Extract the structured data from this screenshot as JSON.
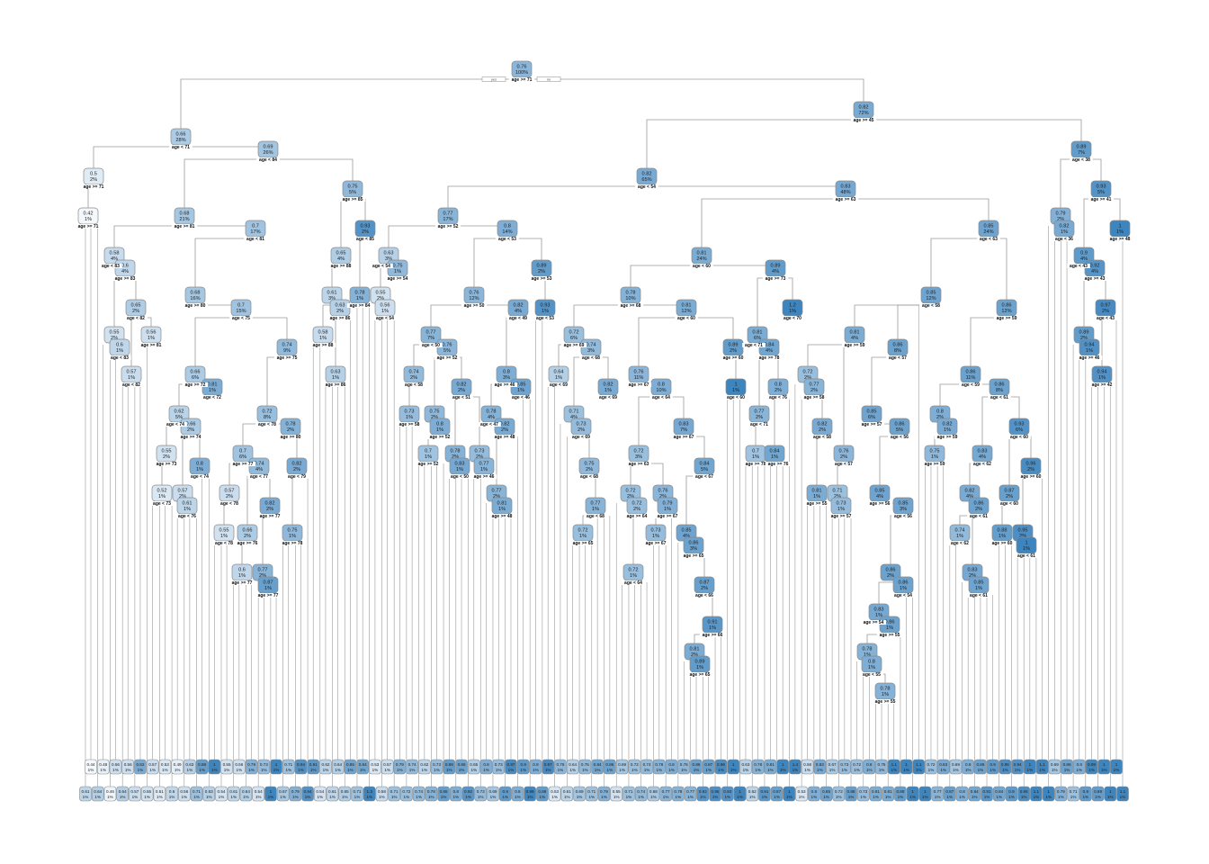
{
  "root_labels": {
    "yes": "yes",
    "no": "no"
  },
  "colors": {
    "low": "#f4f8fc",
    "high": "#3d85bf",
    "edge": "#9a9a9a",
    "box_stroke": "#8a8a8a"
  },
  "nodes": [
    {
      "v": "0.76",
      "p": "100%",
      "s": "age >= 71",
      "parent": null
    },
    {
      "v": "0.66",
      "p": "28%",
      "s": "age < 71",
      "parent": 0
    },
    {
      "v": "0.82",
      "p": "72%",
      "s": "age >= 45",
      "parent": 0
    },
    {
      "v": "0.5",
      "p": "2%",
      "s": "age >= 71",
      "parent": 1
    },
    {
      "v": "0.42",
      "p": "1%",
      "s": "age >= 71",
      "parent": 3
    },
    {
      "v": "0.69",
      "p": "26%",
      "s": "age < 84",
      "parent": 1
    },
    {
      "v": "0.68",
      "p": "21%",
      "s": "age >= 81",
      "parent": 5
    },
    {
      "v": "0.7",
      "p": "17%",
      "s": "age < 81",
      "parent": 6
    },
    {
      "v": "0.75",
      "p": "5%",
      "s": "age >= 85",
      "parent": 5
    },
    {
      "v": "0.93",
      "p": "2%",
      "s": "age < 85",
      "parent": 8
    },
    {
      "v": "0.58",
      "p": "4%",
      "s": "age < 83",
      "parent": 6
    },
    {
      "v": "0.6",
      "p": "4%",
      "s": "age >= 83",
      "parent": 10
    },
    {
      "v": "0.65",
      "p": "2%",
      "s": "age < 82",
      "parent": 11
    },
    {
      "v": "0.55",
      "p": "2%",
      "s": "",
      "parent": 11
    },
    {
      "v": "0.6",
      "p": "1%",
      "s": "age < 83",
      "parent": 13
    },
    {
      "v": "0.57",
      "p": "1%",
      "s": "age < 82",
      "parent": 12
    },
    {
      "v": "0.56",
      "p": "1%",
      "s": "age >= 81",
      "parent": 12
    },
    {
      "v": "0.68",
      "p": "16%",
      "s": "age >= 80",
      "parent": 7
    },
    {
      "v": "0.7",
      "p": "15%",
      "s": "age < 75",
      "parent": 17
    },
    {
      "v": "0.66",
      "p": "6%",
      "s": "age >= 72",
      "parent": 18
    },
    {
      "v": "0.81",
      "p": "1%",
      "s": "age < 72",
      "parent": 19
    },
    {
      "v": "0.62",
      "p": "5%",
      "s": "age < 74",
      "parent": 19
    },
    {
      "v": "0.66",
      "p": "2%",
      "s": "age >= 74",
      "parent": 21
    },
    {
      "v": "0.55",
      "p": "2%",
      "s": "age >= 73",
      "parent": 21
    },
    {
      "v": "0.8",
      "p": "1%",
      "s": "age < 74",
      "parent": 22
    },
    {
      "v": "0.52",
      "p": "1%",
      "s": "age < 73",
      "parent": 23
    },
    {
      "v": "0.57",
      "p": "2%",
      "s": "",
      "parent": 22
    },
    {
      "v": "0.61",
      "p": "1%",
      "s": "age < 76",
      "parent": 26
    },
    {
      "v": "0.74",
      "p": "9%",
      "s": "age >= 75",
      "parent": 18
    },
    {
      "v": "0.72",
      "p": "8%",
      "s": "age < 78",
      "parent": 28
    },
    {
      "v": "0.78",
      "p": "2%",
      "s": "age >= 80",
      "parent": 29
    },
    {
      "v": "0.7",
      "p": "6%",
      "s": "age >= 77",
      "parent": 29
    },
    {
      "v": "0.74",
      "p": "4%",
      "s": "age < 77",
      "parent": 31
    },
    {
      "v": "0.82",
      "p": "2%",
      "s": "age < 79",
      "parent": 30
    },
    {
      "v": "0.57",
      "p": "2%",
      "s": "age < 78",
      "parent": 31
    },
    {
      "v": "0.55",
      "p": "1%",
      "s": "age < 78",
      "parent": 34
    },
    {
      "v": "0.66",
      "p": "2%",
      "s": "age >= 76",
      "parent": 32
    },
    {
      "v": "0.82",
      "p": "2%",
      "s": "age >= 77",
      "parent": 32
    },
    {
      "v": "0.75",
      "p": "1%",
      "s": "age >= 78",
      "parent": 33
    },
    {
      "v": "0.6",
      "p": "1%",
      "s": "age >= 77",
      "parent": 36
    },
    {
      "v": "0.77",
      "p": "2%",
      "s": "",
      "parent": 37
    },
    {
      "v": "0.87",
      "p": "1%",
      "s": "age >= 77",
      "parent": 40
    },
    {
      "v": "0.65",
      "p": "4%",
      "s": "age >= 88",
      "parent": 8
    },
    {
      "v": "0.61",
      "p": "3%",
      "s": "",
      "parent": 42
    },
    {
      "v": "0.63",
      "p": "2%",
      "s": "age >= 86",
      "parent": 43
    },
    {
      "v": "0.58",
      "p": "1%",
      "s": "age >= 88",
      "parent": 43
    },
    {
      "v": "0.63",
      "p": "1%",
      "s": "age >= 86",
      "parent": 44
    },
    {
      "v": "0.78",
      "p": "1%",
      "s": "age >= 84",
      "parent": 9
    },
    {
      "v": "0.82",
      "p": "65%",
      "s": "age < 54",
      "parent": 2
    },
    {
      "v": "0.77",
      "p": "17%",
      "s": "age >= 52",
      "parent": 48
    },
    {
      "v": "0.83",
      "p": "48%",
      "s": "age >= 63",
      "parent": 48
    },
    {
      "v": "0.63",
      "p": "3%",
      "s": "age < 54",
      "parent": 49
    },
    {
      "v": "0.75",
      "p": "1%",
      "s": "age >= 54",
      "parent": 51
    },
    {
      "v": "0.55",
      "p": "2%",
      "s": "",
      "parent": 51
    },
    {
      "v": "0.56",
      "p": "1%",
      "s": "age < 54",
      "parent": 53
    },
    {
      "v": "0.8",
      "p": "14%",
      "s": "age < 53",
      "parent": 49
    },
    {
      "v": "0.76",
      "p": "12%",
      "s": "age >= 50",
      "parent": 55
    },
    {
      "v": "0.89",
      "p": "2%",
      "s": "age >= 53",
      "parent": 55
    },
    {
      "v": "0.93",
      "p": "1%",
      "s": "age < 53",
      "parent": 57
    },
    {
      "v": "0.77",
      "p": "7%",
      "s": "age < 50",
      "parent": 56
    },
    {
      "v": "0.76",
      "p": "5%",
      "s": "age >= 52",
      "parent": 59
    },
    {
      "v": "0.74",
      "p": "2%",
      "s": "age < 58",
      "parent": 59
    },
    {
      "v": "0.73",
      "p": "1%",
      "s": "age >= 58",
      "parent": 61
    },
    {
      "v": "0.75",
      "p": "2%",
      "s": "",
      "parent": 60
    },
    {
      "v": "0.8",
      "p": "1%",
      "s": "age >= 52",
      "parent": 63
    },
    {
      "v": "0.7",
      "p": "1%",
      "s": "age >= 52",
      "parent": 64
    },
    {
      "v": "0.82",
      "p": "2%",
      "s": "age < 51",
      "parent": 60
    },
    {
      "v": "0.78",
      "p": "2%",
      "s": "",
      "parent": 66
    },
    {
      "v": "0.83",
      "p": "1%",
      "s": "age < 50",
      "parent": 67
    },
    {
      "v": "0.73",
      "p": "2%",
      "s": "",
      "parent": 66
    },
    {
      "v": "0.77",
      "p": "1%",
      "s": "age >= 46",
      "parent": 69
    },
    {
      "v": "0.82",
      "p": "4%",
      "s": "age < 49",
      "parent": 56
    },
    {
      "v": "0.8",
      "p": "3%",
      "s": "age >= 46",
      "parent": 71
    },
    {
      "v": "0.85",
      "p": "1%",
      "s": "age < 46",
      "parent": 72
    },
    {
      "v": "0.78",
      "p": "4%",
      "s": "age < 47",
      "parent": 72
    },
    {
      "v": "0.82",
      "p": "2%",
      "s": "age >= 48",
      "parent": 74
    },
    {
      "v": "0.77",
      "p": "2%",
      "s": "",
      "parent": 75
    },
    {
      "v": "0.81",
      "p": "1%",
      "s": "age >= 48",
      "parent": 76
    },
    {
      "v": "0.81",
      "p": "24%",
      "s": "age < 60",
      "parent": 50
    },
    {
      "v": "0.89",
      "p": "4%",
      "s": "age >= 73",
      "parent": 78
    },
    {
      "v": "0.78",
      "p": "10%",
      "s": "age >= 68",
      "parent": 78
    },
    {
      "v": "0.81",
      "p": "12%",
      "s": "age < 60",
      "parent": 80
    },
    {
      "v": "0.72",
      "p": "6%",
      "s": "age >= 69",
      "parent": 80
    },
    {
      "v": "0.74",
      "p": "3%",
      "s": "age < 68",
      "parent": 82
    },
    {
      "v": "0.64",
      "p": "1%",
      "s": "age < 69",
      "parent": 82
    },
    {
      "v": "0.71",
      "p": "4%",
      "s": "",
      "parent": 83
    },
    {
      "v": "0.73",
      "p": "2%",
      "s": "age < 69",
      "parent": 85
    },
    {
      "v": "0.75",
      "p": "2%",
      "s": "age < 68",
      "parent": 86
    },
    {
      "v": "0.77",
      "p": "1%",
      "s": "age < 68",
      "parent": 87
    },
    {
      "v": "0.72",
      "p": "1%",
      "s": "age >= 65",
      "parent": 88
    },
    {
      "v": "0.82",
      "p": "1%",
      "s": "age < 69",
      "parent": 83
    },
    {
      "v": "0.76",
      "p": "11%",
      "s": "age >= 67",
      "parent": 81
    },
    {
      "v": "0.8",
      "p": "10%",
      "s": "age < 64",
      "parent": 91
    },
    {
      "v": "0.72",
      "p": "3%",
      "s": "age >= 63",
      "parent": 92
    },
    {
      "v": "0.72",
      "p": "2%",
      "s": "",
      "parent": 93
    },
    {
      "v": "0.72",
      "p": "2%",
      "s": "age >= 64",
      "parent": 94
    },
    {
      "v": "0.72",
      "p": "1%",
      "s": "age < 64",
      "parent": 95
    },
    {
      "v": "0.76",
      "p": "2%",
      "s": "",
      "parent": 93
    },
    {
      "v": "0.79",
      "p": "1%",
      "s": "age >= 67",
      "parent": 97
    },
    {
      "v": "0.73",
      "p": "1%",
      "s": "age >= 67",
      "parent": 98
    },
    {
      "v": "0.83",
      "p": "7%",
      "s": "age >= 67",
      "parent": 92
    },
    {
      "v": "0.84",
      "p": "5%",
      "s": "age < 67",
      "parent": 100
    },
    {
      "v": "0.85",
      "p": "4%",
      "s": "",
      "parent": 101
    },
    {
      "v": "0.86",
      "p": "3%",
      "s": "age >= 65",
      "parent": 102
    },
    {
      "v": "0.87",
      "p": "2%",
      "s": "age < 66",
      "parent": 103
    },
    {
      "v": "0.91",
      "p": "1%",
      "s": "age >= 66",
      "parent": 104
    },
    {
      "v": "0.81",
      "p": "2%",
      "s": "",
      "parent": 105
    },
    {
      "v": "0.89",
      "p": "1%",
      "s": "age >= 65",
      "parent": 106
    },
    {
      "v": "0.89",
      "p": "2%",
      "s": "age >= 60",
      "parent": 81
    },
    {
      "v": "1",
      "p": "1%",
      "s": "age < 60",
      "parent": 108
    },
    {
      "v": "0.81",
      "p": "6%",
      "s": "age < 71",
      "parent": 79
    },
    {
      "v": "0.84",
      "p": "4%",
      "s": "age >= 78",
      "parent": 110
    },
    {
      "v": "0.77",
      "p": "2%",
      "s": "age < 71",
      "parent": 111
    },
    {
      "v": "0.8",
      "p": "2%",
      "s": "age < 76",
      "parent": 111
    },
    {
      "v": "0.7",
      "p": "1%",
      "s": "age >= 78",
      "parent": 112
    },
    {
      "v": "0.84",
      "p": "1%",
      "s": "age >= 76",
      "parent": 113
    },
    {
      "v": "1.2",
      "p": "1%",
      "s": "age < 70",
      "parent": 79
    },
    {
      "v": "0.85",
      "p": "24%",
      "s": "age < 63",
      "parent": 50
    },
    {
      "v": "0.85",
      "p": "12%",
      "s": "age < 58",
      "parent": 117
    },
    {
      "v": "0.86",
      "p": "12%",
      "s": "age >= 59",
      "parent": 117
    },
    {
      "v": "0.81",
      "p": "4%",
      "s": "age >= 59",
      "parent": 118
    },
    {
      "v": "0.86",
      "p": "8%",
      "s": "age < 57",
      "parent": 118
    },
    {
      "v": "0.72",
      "p": "2%",
      "s": "",
      "parent": 120
    },
    {
      "v": "0.77",
      "p": "2%",
      "s": "age >= 58",
      "parent": 122
    },
    {
      "v": "0.82",
      "p": "2%",
      "s": "age < 58",
      "parent": 123
    },
    {
      "v": "0.81",
      "p": "1%",
      "s": "age >= 55",
      "parent": 124
    },
    {
      "v": "0.76",
      "p": "2%",
      "s": "age < 57",
      "parent": 120
    },
    {
      "v": "0.71",
      "p": "2%",
      "s": "",
      "parent": 126
    },
    {
      "v": "0.73",
      "p": "1%",
      "s": "age >= 57",
      "parent": 127
    },
    {
      "v": "0.85",
      "p": "6%",
      "s": "age >= 57",
      "parent": 121
    },
    {
      "v": "0.86",
      "p": "5%",
      "s": "age < 56",
      "parent": 129
    },
    {
      "v": "0.85",
      "p": "4%",
      "s": "age >= 56",
      "parent": 130
    },
    {
      "v": "0.85",
      "p": "3%",
      "s": "age < 56",
      "parent": 131
    },
    {
      "v": "0.86",
      "p": "2%",
      "s": "",
      "parent": 132
    },
    {
      "v": "0.86",
      "p": "1%",
      "s": "age < 54",
      "parent": 133
    },
    {
      "v": "0.83",
      "p": "1%",
      "s": "age >= 54",
      "parent": 133
    },
    {
      "v": "0.86",
      "p": "1%",
      "s": "age >= 55",
      "parent": 135
    },
    {
      "v": "0.78",
      "p": "1%",
      "s": "",
      "parent": 136
    },
    {
      "v": "0.8",
      "p": "1%",
      "s": "age < 55",
      "parent": 137
    },
    {
      "v": "0.78",
      "p": "1%",
      "s": "age >= 55",
      "parent": 138
    },
    {
      "v": "0.86",
      "p": "11%",
      "s": "age < 59",
      "parent": 119
    },
    {
      "v": "0.86",
      "p": "8%",
      "s": "age < 61",
      "parent": 140
    },
    {
      "v": "0.8",
      "p": "2%",
      "s": "",
      "parent": 140
    },
    {
      "v": "0.82",
      "p": "1%",
      "s": "age >= 59",
      "parent": 142
    },
    {
      "v": "0.75",
      "p": "1%",
      "s": "age >= 59",
      "parent": 143
    },
    {
      "v": "0.83",
      "p": "4%",
      "s": "age < 62",
      "parent": 141
    },
    {
      "v": "0.82",
      "p": "4%",
      "s": "",
      "parent": 145
    },
    {
      "v": "0.86",
      "p": "2%",
      "s": "age < 61",
      "parent": 146
    },
    {
      "v": "0.74",
      "p": "1%",
      "s": "age < 62",
      "parent": 147
    },
    {
      "v": "0.83",
      "p": "2%",
      "s": "",
      "parent": 147
    },
    {
      "v": "0.85",
      "p": "1%",
      "s": "age < 61",
      "parent": 149
    },
    {
      "v": "0.93",
      "p": "6%",
      "s": "age < 60",
      "parent": 141
    },
    {
      "v": "0.96",
      "p": "2%",
      "s": "age >= 60",
      "parent": 151
    },
    {
      "v": "0.87",
      "p": "2%",
      "s": "age < 60",
      "parent": 151
    },
    {
      "v": "0.88",
      "p": "1%",
      "s": "age >= 60",
      "parent": 153
    },
    {
      "v": "0.95",
      "p": "2%",
      "s": "",
      "parent": 152
    },
    {
      "v": "1",
      "p": "1%",
      "s": "age < 61",
      "parent": 155
    },
    {
      "v": "0.89",
      "p": "7%",
      "s": "age < 38",
      "parent": 2
    },
    {
      "v": "0.79",
      "p": "2%",
      "s": "",
      "parent": 157
    },
    {
      "v": "0.82",
      "p": "1%",
      "s": "age < 36",
      "parent": 158
    },
    {
      "v": "0.93",
      "p": "5%",
      "s": "age >= 41",
      "parent": 157
    },
    {
      "v": "1",
      "p": "1%",
      "s": "age >= 48",
      "parent": 160
    },
    {
      "v": "0.9",
      "p": "4%",
      "s": "age < 43",
      "parent": 160
    },
    {
      "v": "0.92",
      "p": "4%",
      "s": "age >= 43",
      "parent": 162
    },
    {
      "v": "0.97",
      "p": "2%",
      "s": "age < 43",
      "parent": 163
    },
    {
      "v": "0.89",
      "p": "2%",
      "s": "",
      "parent": 163
    },
    {
      "v": "0.94",
      "p": "1%",
      "s": "age >= 46",
      "parent": 165
    },
    {
      "v": "0.94",
      "p": "1%",
      "s": "age >= 42",
      "parent": 164
    }
  ],
  "leaves_row1": [
    "0.44",
    "0.48",
    "0.56",
    "0.56",
    "0.82",
    "0.57",
    "0.53",
    "0.49",
    "0.63",
    "0.88",
    "1",
    "0.55",
    "0.56",
    "0.79",
    "0.73",
    "1",
    "0.71",
    "0.94",
    "0.91",
    "0.62",
    "0.64",
    "0.85",
    "0.84",
    "0.53",
    "0.57",
    "0.79",
    "0.74",
    "0.62",
    "0.73",
    "0.89",
    "0.86",
    "0.65",
    "0.8",
    "0.73",
    "0.97",
    "0.9",
    "0.8",
    "0.97",
    "0.76",
    "0.64",
    "0.75",
    "0.84",
    "0.86",
    "0.69",
    "0.72",
    "0.74",
    "0.78",
    "0.8",
    "0.76",
    "0.86",
    "0.87",
    "0.96",
    "1",
    "0.63",
    "0.78",
    "0.81",
    "1",
    "1.4",
    "0.58",
    "0.83",
    "0.67",
    "0.73",
    "0.72",
    "0.8",
    "0.75",
    "1.1",
    "1",
    "1.1",
    "0.72",
    "0.83",
    "0.69",
    "0.8",
    "0.86",
    "0.9",
    "0.95",
    "0.94",
    "1",
    "1.1",
    "0.69",
    "0.86",
    "0.8",
    "0.99",
    "1",
    "1"
  ],
  "leaves_row2": [
    "0.61",
    "0.64",
    "0.46",
    "0.64",
    "0.57",
    "0.55",
    "0.51",
    "0.6",
    "0.56",
    "0.71",
    "0.63",
    "0.54",
    "0.61",
    "0.64",
    "0.54",
    "1",
    "0.67",
    "0.79",
    "0.94",
    "0.54",
    "0.61",
    "0.65",
    "0.71",
    "1.3",
    "0.58",
    "0.71",
    "0.72",
    "0.74",
    "0.78",
    "0.88",
    "0.8",
    "0.92",
    "0.73",
    "0.69",
    "0.9",
    "0.8",
    "0.99",
    "0.89",
    "0.53",
    "0.61",
    "0.69",
    "0.71",
    "0.79",
    "0.55",
    "0.71",
    "0.74",
    "0.68",
    "0.77",
    "0.78",
    "0.77",
    "0.92",
    "0.95",
    "0.93",
    "1",
    "0.62",
    "0.91",
    "0.87",
    "1",
    "0.53",
    "0.8",
    "0.85",
    "0.72",
    "0.88",
    "0.73",
    "0.81",
    "0.81",
    "0.88",
    "1",
    "1",
    "0.77",
    "0.87",
    "0.8",
    "0.84",
    "0.91",
    "0.84",
    "0.9",
    "0.96",
    "1.1",
    "1",
    "0.79",
    "0.71",
    "0.9",
    "0.89",
    "1",
    "1.1"
  ],
  "leaf_pct": "1%"
}
